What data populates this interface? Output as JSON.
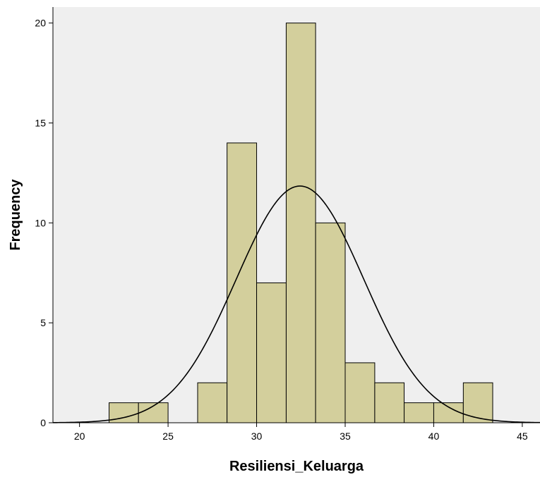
{
  "chart_data": {
    "type": "bar",
    "title": "",
    "xlabel": "Resiliensi_Keluarga",
    "ylabel": "Frequency",
    "xlim": [
      18.5,
      46
    ],
    "ylim": [
      0,
      20.8
    ],
    "xticks": [
      20,
      25,
      30,
      35,
      40,
      45
    ],
    "yticks": [
      0,
      5,
      10,
      15,
      20
    ],
    "grid": false,
    "bin_width": 1.67,
    "bins": [
      {
        "start": 21.67,
        "end": 23.33,
        "value": 1
      },
      {
        "start": 23.33,
        "end": 25.0,
        "value": 1
      },
      {
        "start": 25.0,
        "end": 26.67,
        "value": 0
      },
      {
        "start": 26.67,
        "end": 28.33,
        "value": 2
      },
      {
        "start": 28.33,
        "end": 30.0,
        "value": 14
      },
      {
        "start": 30.0,
        "end": 31.67,
        "value": 7
      },
      {
        "start": 31.67,
        "end": 33.33,
        "value": 20
      },
      {
        "start": 33.33,
        "end": 35.0,
        "value": 10
      },
      {
        "start": 35.0,
        "end": 36.67,
        "value": 3
      },
      {
        "start": 36.67,
        "end": 38.33,
        "value": 2
      },
      {
        "start": 38.33,
        "end": 40.0,
        "value": 1
      },
      {
        "start": 40.0,
        "end": 41.67,
        "value": 1
      },
      {
        "start": 41.67,
        "end": 43.33,
        "value": 2
      }
    ],
    "normal_curve": {
      "mean": 32.45,
      "sd": 3.6,
      "n": 64
    },
    "colors": {
      "plot_background": "#efefef",
      "bar_fill": "#d3cf9c",
      "bar_stroke": "#000000",
      "curve": "#000000",
      "axis": "#000000"
    }
  }
}
